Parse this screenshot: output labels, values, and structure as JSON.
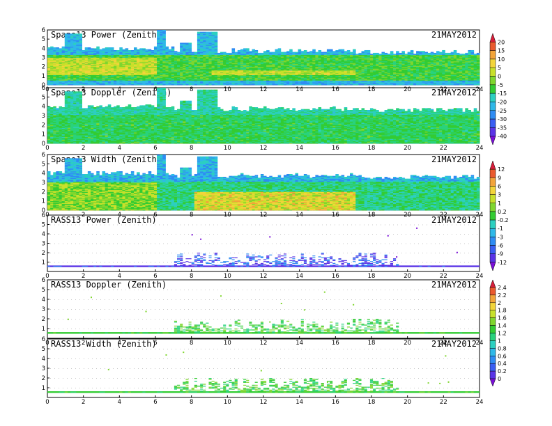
{
  "date_label": "21MAY2012",
  "colors": {
    "palette": [
      "#7a0fd8",
      "#5a34e6",
      "#3a5ef2",
      "#2f8cf3",
      "#2fb8e8",
      "#2ccfc0",
      "#29d27d",
      "#33cc33",
      "#7fd62e",
      "#c8e02a",
      "#f2d43a",
      "#f2a43a",
      "#ea5a2e",
      "#d81e3a"
    ],
    "dots": "#c8c8c8",
    "axis": "#000000"
  },
  "chart_data": [
    {
      "type": "heatmap",
      "title": "Spano13 Power (Zenith)",
      "x_ticks": [
        0,
        2,
        4,
        6,
        8,
        10,
        12,
        14,
        16,
        18,
        20,
        22,
        24
      ],
      "y_ticks": [
        0,
        1,
        2,
        3,
        4,
        5,
        6
      ],
      "xlim": [
        0,
        24
      ],
      "ylim": [
        0,
        6
      ],
      "colorbar": {
        "levels": [
          "20",
          "15",
          "10",
          "5",
          "0",
          "-5",
          "-15",
          "-20",
          "-25",
          "-30",
          "-35",
          "-40"
        ]
      }
    },
    {
      "type": "heatmap",
      "title": "Spano13 Doppler (Zenith)",
      "x_ticks": [
        0,
        2,
        4,
        6,
        8,
        10,
        12,
        14,
        16,
        18,
        20,
        22,
        24
      ],
      "y_ticks": [
        0,
        1,
        2,
        3,
        4,
        5,
        6
      ],
      "xlim": [
        0,
        24
      ],
      "ylim": [
        0,
        6
      ]
    },
    {
      "type": "heatmap",
      "title": "Spano13 Width (Zenith)",
      "x_ticks": [
        0,
        2,
        4,
        6,
        8,
        10,
        12,
        14,
        16,
        18,
        20,
        22,
        24
      ],
      "y_ticks": [
        0,
        1,
        2,
        3,
        4,
        5,
        6
      ],
      "xlim": [
        0,
        24
      ],
      "ylim": [
        0,
        6
      ]
    },
    {
      "type": "heatmap",
      "title": "RASS13 Power (Zenith)",
      "x_ticks": [
        0,
        2,
        4,
        6,
        8,
        10,
        12,
        14,
        16,
        18,
        20,
        22,
        24
      ],
      "y_ticks": [
        1,
        2,
        3,
        4,
        5,
        6
      ],
      "xlim": [
        0,
        24
      ],
      "ylim": [
        0,
        6
      ],
      "colorbar": {
        "levels": [
          "12",
          "9",
          "6",
          "3",
          "1",
          "0.2",
          "-0.2",
          "-1",
          "-3",
          "-6",
          "-9",
          "-12"
        ]
      }
    },
    {
      "type": "heatmap",
      "title": "RASS13 Doppler (Zenith)",
      "x_ticks": [
        0,
        2,
        4,
        6,
        8,
        10,
        12,
        14,
        16,
        18,
        20,
        22,
        24
      ],
      "y_ticks": [
        1,
        2,
        3,
        4,
        5,
        6
      ],
      "xlim": [
        0,
        24
      ],
      "ylim": [
        0,
        6
      ]
    },
    {
      "type": "heatmap",
      "title": "RASS13 Width (Zenith)",
      "x_ticks": [
        0,
        2,
        4,
        6,
        8,
        10,
        12,
        14,
        16,
        18,
        20,
        22,
        24
      ],
      "y_ticks": [
        1,
        2,
        3,
        4,
        5,
        6
      ],
      "xlim": [
        0,
        24
      ],
      "ylim": [
        0,
        6
      ],
      "colorbar": {
        "levels": [
          "2.4",
          "2.2",
          "2",
          "1.8",
          "1.6",
          "1.4",
          "1.2",
          "1",
          "0.8",
          "0.6",
          "0.4",
          "0.2",
          "0"
        ]
      }
    }
  ]
}
